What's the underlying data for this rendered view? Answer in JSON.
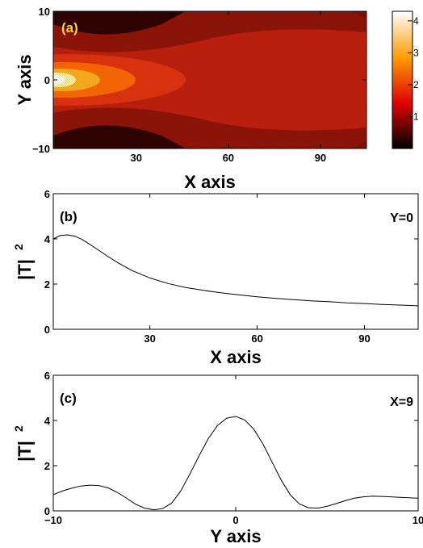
{
  "chart_data": [
    {
      "type": "heatmap",
      "panel_label": "(a)",
      "xlabel": "X axis",
      "ylabel": "Y axis",
      "xlim": [
        3,
        105
      ],
      "ylim": [
        -10,
        10
      ],
      "x_ticks": [
        "30",
        "60",
        "90"
      ],
      "y_ticks": [
        "10",
        "0",
        "−10"
      ],
      "colorbar": {
        "range": [
          0,
          4.3
        ],
        "ticks": [
          "1",
          "2",
          "3",
          "4"
        ],
        "colormap": "hot"
      },
      "description_values": {
        "peak_value": 4.2,
        "peak_x": 6,
        "peak_y": 0
      }
    },
    {
      "type": "line",
      "panel_label": "(b)",
      "annotation": "Y=0",
      "xlabel": "X axis",
      "ylabel": "|T|",
      "ylabel_sup": "2",
      "xlim": [
        3,
        105
      ],
      "ylim": [
        0,
        6
      ],
      "x_ticks": [
        "30",
        "60",
        "90"
      ],
      "y_ticks": [
        "0",
        "2",
        "4",
        "6"
      ],
      "series": [
        {
          "x": [
            3,
            5,
            7,
            9,
            11,
            13,
            15,
            18,
            21,
            25,
            30,
            35,
            40,
            45,
            50,
            55,
            60,
            65,
            70,
            75,
            80,
            85,
            90,
            95,
            100,
            105
          ],
          "y": [
            4.0,
            4.15,
            4.18,
            4.12,
            3.98,
            3.78,
            3.57,
            3.25,
            2.95,
            2.6,
            2.27,
            2.03,
            1.85,
            1.72,
            1.61,
            1.52,
            1.44,
            1.37,
            1.31,
            1.26,
            1.22,
            1.17,
            1.14,
            1.1,
            1.07,
            1.04
          ]
        }
      ]
    },
    {
      "type": "line",
      "panel_label": "(c)",
      "annotation": "X=9",
      "xlabel": "Y axis",
      "ylabel": "|T|",
      "ylabel_sup": "2",
      "xlim": [
        -10,
        10
      ],
      "ylim": [
        0,
        6
      ],
      "x_ticks": [
        "−10",
        "0",
        "10"
      ],
      "y_ticks": [
        "0",
        "2",
        "4",
        "6"
      ],
      "series": [
        {
          "x": [
            -10,
            -9.5,
            -9,
            -8.5,
            -8,
            -7.5,
            -7,
            -6.5,
            -6,
            -5.5,
            -5,
            -4.5,
            -4,
            -3.5,
            -3,
            -2.5,
            -2,
            -1.5,
            -1,
            -0.5,
            0,
            0.5,
            1,
            1.5,
            2,
            2.5,
            3,
            3.5,
            4,
            4.5,
            5,
            5.5,
            6,
            6.5,
            7,
            7.5,
            8,
            8.5,
            9,
            9.5,
            10
          ],
          "y": [
            0.72,
            0.88,
            1.0,
            1.1,
            1.14,
            1.12,
            1.02,
            0.82,
            0.57,
            0.3,
            0.12,
            0.05,
            0.1,
            0.35,
            0.9,
            1.65,
            2.45,
            3.2,
            3.78,
            4.1,
            4.18,
            4.02,
            3.6,
            2.95,
            2.15,
            1.35,
            0.7,
            0.3,
            0.14,
            0.12,
            0.2,
            0.32,
            0.45,
            0.56,
            0.62,
            0.65,
            0.64,
            0.62,
            0.6,
            0.58,
            0.56
          ]
        }
      ]
    }
  ]
}
